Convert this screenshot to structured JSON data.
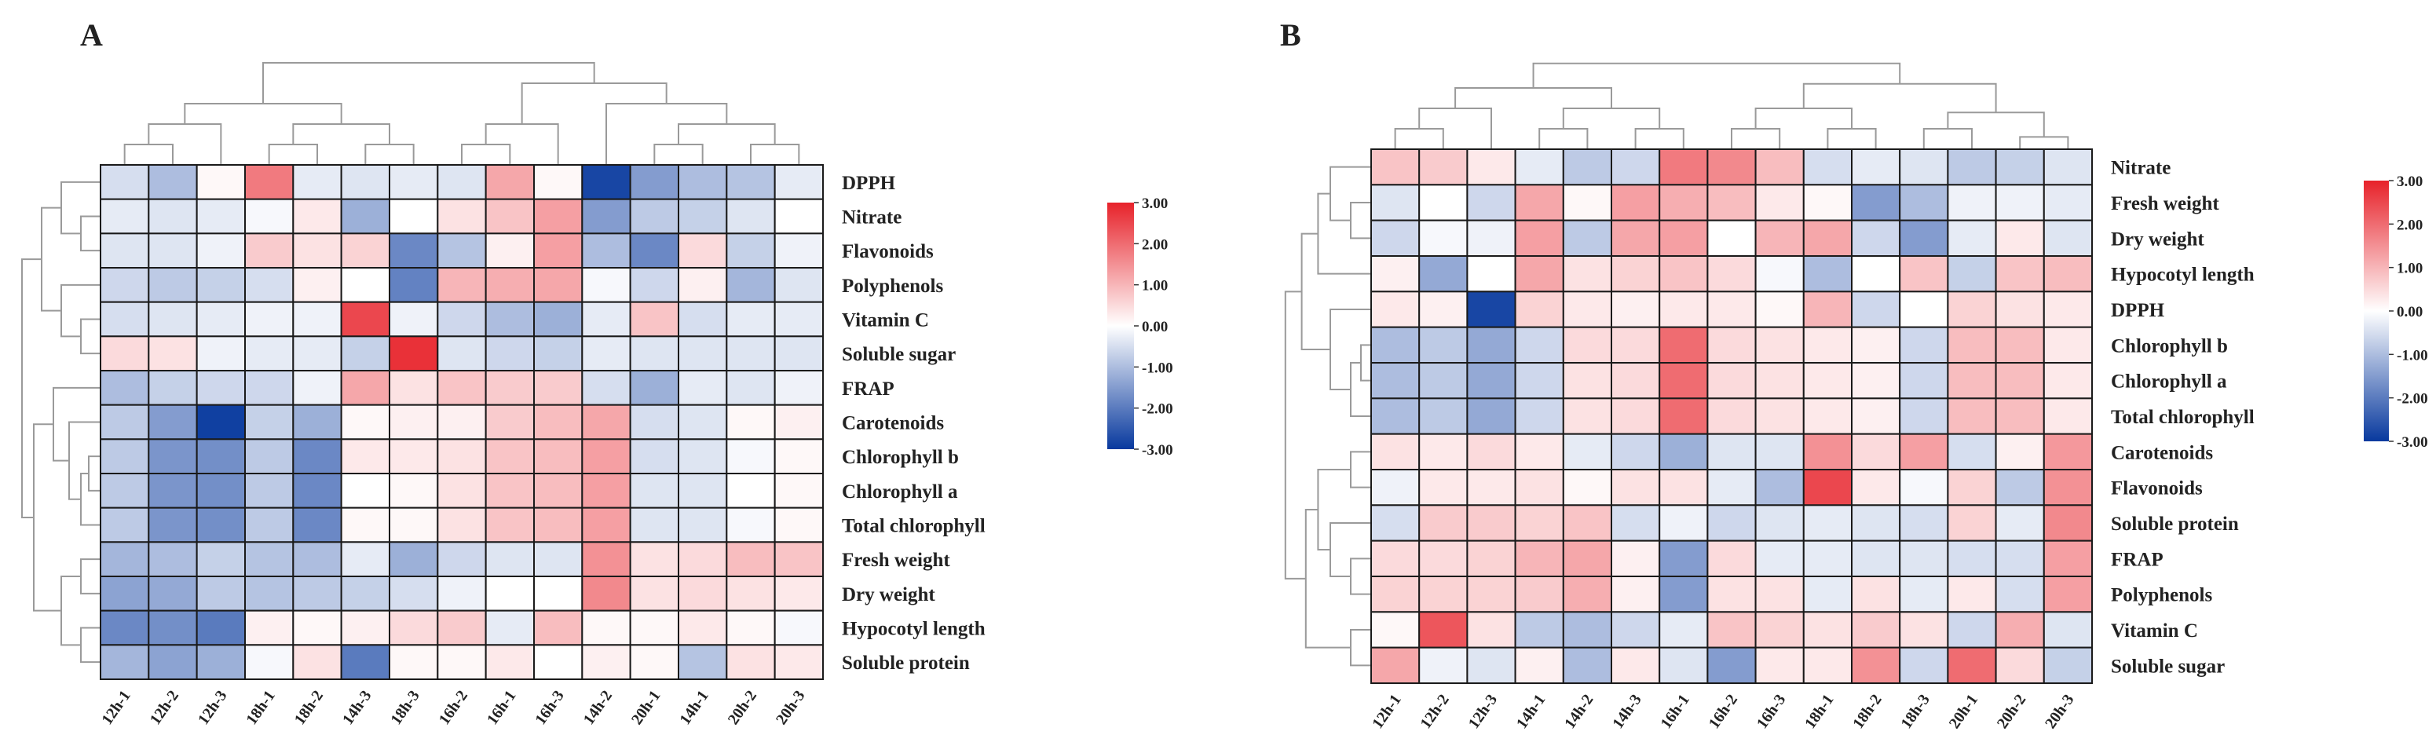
{
  "chart_data": [
    {
      "type": "heatmap",
      "panel_label": "A",
      "color_scale": {
        "min": -3,
        "max": 3,
        "low": "#08399e",
        "mid": "#ffffff",
        "high": "#e7222a",
        "ticks": [
          "3.00",
          "2.00",
          "1.00",
          "0.00",
          "-1.00",
          "-2.00",
          "-3.00"
        ]
      },
      "columns": [
        "12h-1",
        "12h-2",
        "12h-3",
        "18h-1",
        "18h-2",
        "14h-3",
        "18h-3",
        "16h-2",
        "16h-1",
        "16h-3",
        "14h-2",
        "20h-1",
        "14h-1",
        "20h-2",
        "20h-3"
      ],
      "rows": [
        "DPPH",
        "Nitrate",
        "Flavonoids",
        "Polyphenols",
        "Vitamin C",
        "Soluble sugar",
        "FRAP",
        "Carotenoids",
        "Chlorophyll b",
        "Chlorophyll a",
        "Total chlorophyll",
        "Fresh weight",
        "Dry weight",
        "Hypocotyl length",
        "Soluble protein"
      ],
      "values": [
        [
          -0.5,
          -1.0,
          0.1,
          1.8,
          -0.3,
          -0.4,
          -0.3,
          -0.4,
          1.2,
          0.1,
          -2.8,
          -1.5,
          -1.0,
          -0.9,
          -0.3
        ],
        [
          -0.3,
          -0.4,
          -0.3,
          -0.1,
          0.3,
          -1.2,
          0.0,
          0.4,
          0.8,
          1.3,
          -1.5,
          -0.8,
          -0.7,
          -0.4,
          0.0
        ],
        [
          -0.4,
          -0.4,
          -0.2,
          0.7,
          0.4,
          0.6,
          -1.8,
          -0.9,
          0.2,
          1.3,
          -1.0,
          -1.8,
          0.5,
          -0.7,
          -0.2
        ],
        [
          -0.6,
          -0.8,
          -0.7,
          -0.5,
          0.2,
          0.0,
          -1.9,
          1.0,
          1.1,
          1.2,
          -0.1,
          -0.6,
          0.2,
          -1.1,
          -0.4
        ],
        [
          -0.5,
          -0.4,
          -0.3,
          -0.2,
          -0.2,
          2.5,
          -0.2,
          -0.6,
          -1.0,
          -1.2,
          -0.3,
          0.8,
          -0.5,
          -0.3,
          -0.3
        ],
        [
          0.5,
          0.4,
          -0.2,
          -0.3,
          -0.3,
          -0.7,
          2.8,
          -0.4,
          -0.6,
          -0.7,
          -0.3,
          -0.4,
          -0.4,
          -0.4,
          -0.4
        ],
        [
          -1.0,
          -0.7,
          -0.6,
          -0.6,
          -0.2,
          1.2,
          0.4,
          0.8,
          0.7,
          0.7,
          -0.5,
          -1.2,
          -0.3,
          -0.4,
          -0.2
        ],
        [
          -0.8,
          -1.5,
          -2.9,
          -0.7,
          -1.2,
          0.1,
          0.2,
          0.2,
          0.7,
          0.9,
          1.2,
          -0.5,
          -0.4,
          0.1,
          0.2
        ],
        [
          -0.8,
          -1.6,
          -1.7,
          -0.8,
          -1.8,
          0.3,
          0.3,
          0.4,
          0.8,
          0.9,
          1.3,
          -0.5,
          -0.4,
          -0.1,
          0.1
        ],
        [
          -0.8,
          -1.6,
          -1.7,
          -0.8,
          -1.8,
          0.0,
          0.1,
          0.4,
          0.8,
          0.9,
          1.3,
          -0.4,
          -0.4,
          0.0,
          0.1
        ],
        [
          -0.8,
          -1.6,
          -1.7,
          -0.8,
          -1.8,
          0.1,
          0.1,
          0.4,
          0.8,
          0.9,
          1.3,
          -0.4,
          -0.4,
          -0.1,
          0.1
        ],
        [
          -1.1,
          -1.0,
          -0.7,
          -0.9,
          -1.0,
          -0.3,
          -1.2,
          -0.6,
          -0.4,
          -0.4,
          1.5,
          0.4,
          0.5,
          0.9,
          0.8
        ],
        [
          -1.4,
          -1.3,
          -0.8,
          -0.9,
          -0.8,
          -0.7,
          -0.5,
          -0.2,
          0.0,
          0.0,
          1.6,
          0.4,
          0.5,
          0.4,
          0.3
        ],
        [
          -1.8,
          -1.7,
          -2.0,
          0.2,
          0.1,
          0.2,
          0.5,
          0.7,
          -0.3,
          0.9,
          0.1,
          0.1,
          0.3,
          0.1,
          -0.1
        ],
        [
          -1.1,
          -1.4,
          -1.2,
          -0.1,
          0.4,
          -2.0,
          0.1,
          0.1,
          0.3,
          0.0,
          0.2,
          0.1,
          -0.9,
          0.4,
          0.3
        ]
      ]
    },
    {
      "type": "heatmap",
      "panel_label": "B",
      "color_scale": {
        "min": -3,
        "max": 3,
        "low": "#08399e",
        "mid": "#ffffff",
        "high": "#e7222a",
        "ticks": [
          "3.00",
          "2.00",
          "1.00",
          "0.00",
          "-1.00",
          "-2.00",
          "-3.00"
        ]
      },
      "columns": [
        "12h-1",
        "12h-2",
        "12h-3",
        "14h-1",
        "14h-2",
        "14h-3",
        "16h-1",
        "16h-2",
        "16h-3",
        "18h-1",
        "18h-2",
        "18h-3",
        "20h-1",
        "20h-2",
        "20h-3"
      ],
      "rows": [
        "Nitrate",
        "Fresh weight",
        "Dry weight",
        "Hypocotyl length",
        "DPPH",
        "Chlorophyll b",
        "Chlorophyll a",
        "Total chlorophyll",
        "Carotenoids",
        "Flavonoids",
        "Soluble protein",
        "FRAP",
        "Polyphenols",
        "Vitamin C",
        "Soluble sugar"
      ],
      "values": [
        [
          0.8,
          0.7,
          0.3,
          -0.3,
          -0.8,
          -0.6,
          1.8,
          1.6,
          0.9,
          -0.5,
          -0.3,
          -0.4,
          -0.8,
          -0.7,
          -0.4
        ],
        [
          -0.4,
          0.0,
          -0.6,
          1.2,
          0.1,
          1.3,
          1.1,
          0.9,
          0.3,
          0.1,
          -1.5,
          -1.0,
          -0.2,
          -0.2,
          -0.3
        ],
        [
          -0.6,
          -0.1,
          -0.2,
          1.3,
          -0.8,
          1.2,
          1.3,
          0.0,
          1.0,
          1.2,
          -0.6,
          -1.5,
          -0.3,
          0.3,
          -0.4
        ],
        [
          0.2,
          -1.3,
          0.0,
          1.2,
          0.4,
          0.6,
          0.8,
          0.5,
          -0.1,
          -1.0,
          0.0,
          0.8,
          -0.7,
          0.8,
          0.9
        ],
        [
          0.3,
          0.2,
          -2.8,
          0.6,
          0.3,
          0.2,
          0.3,
          0.3,
          0.1,
          1.0,
          -0.6,
          0.0,
          0.6,
          0.4,
          0.3
        ],
        [
          -1.0,
          -0.8,
          -1.3,
          -0.6,
          0.5,
          0.5,
          2.0,
          0.5,
          0.4,
          0.3,
          0.2,
          -0.6,
          0.9,
          0.9,
          0.3
        ],
        [
          -1.0,
          -0.8,
          -1.3,
          -0.6,
          0.4,
          0.5,
          2.0,
          0.5,
          0.4,
          0.3,
          0.2,
          -0.6,
          0.9,
          0.9,
          0.3
        ],
        [
          -1.0,
          -0.8,
          -1.3,
          -0.6,
          0.4,
          0.5,
          2.0,
          0.5,
          0.4,
          0.3,
          0.2,
          -0.6,
          0.9,
          0.9,
          0.3
        ],
        [
          0.4,
          0.3,
          0.5,
          0.3,
          -0.3,
          -0.6,
          -1.2,
          -0.4,
          -0.4,
          1.5,
          0.5,
          1.3,
          -0.5,
          0.2,
          1.4
        ],
        [
          -0.2,
          0.3,
          0.3,
          0.4,
          0.1,
          0.4,
          0.4,
          -0.3,
          -1.0,
          2.5,
          0.3,
          -0.1,
          0.6,
          -0.8,
          1.5
        ],
        [
          -0.5,
          0.7,
          0.7,
          0.6,
          0.8,
          -0.5,
          -0.2,
          -0.6,
          -0.4,
          -0.3,
          -0.4,
          -0.5,
          0.6,
          -0.3,
          1.6
        ],
        [
          0.5,
          0.5,
          0.6,
          1.0,
          1.2,
          0.2,
          -1.5,
          0.5,
          -0.3,
          -0.3,
          -0.4,
          -0.4,
          -0.5,
          -0.5,
          1.3
        ],
        [
          0.6,
          0.6,
          0.6,
          0.7,
          1.1,
          0.2,
          -1.5,
          0.4,
          0.4,
          -0.3,
          0.4,
          -0.3,
          0.3,
          -0.5,
          1.3
        ],
        [
          0.1,
          2.3,
          0.4,
          -0.8,
          -1.0,
          -0.6,
          -0.3,
          0.8,
          0.6,
          0.4,
          0.7,
          0.4,
          -0.6,
          1.1,
          -0.4
        ],
        [
          1.2,
          -0.2,
          -0.4,
          0.2,
          -1.0,
          0.3,
          -0.4,
          -1.5,
          0.3,
          0.3,
          1.5,
          -0.6,
          2.0,
          0.5,
          -0.7
        ]
      ]
    }
  ]
}
